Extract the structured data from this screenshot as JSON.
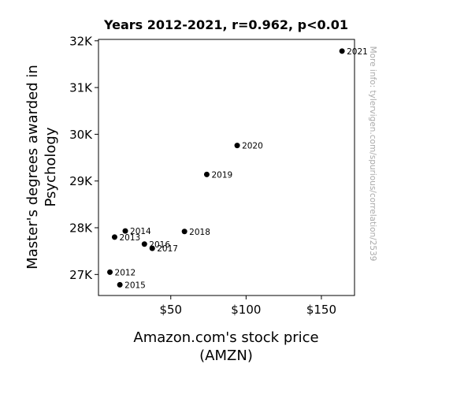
{
  "chart_data": {
    "type": "scatter",
    "title": "Years 2012-2021, r=0.962, p<0.01",
    "xlabel_lines": [
      "Amazon.com's stock price",
      "(AMZN)"
    ],
    "ylabel_lines": [
      "Master's degrees awarded in",
      "Psychology"
    ],
    "watermark": "More info: tylervigen.com/spurious/correlation/2539",
    "xlim": [
      2,
      172
    ],
    "ylim": [
      26550,
      32030
    ],
    "x_ticks": [
      {
        "value": 50,
        "label": "$50"
      },
      {
        "value": 100,
        "label": "$100"
      },
      {
        "value": 150,
        "label": "$150"
      }
    ],
    "y_ticks": [
      {
        "value": 27000,
        "label": "27K"
      },
      {
        "value": 28000,
        "label": "28K"
      },
      {
        "value": 29000,
        "label": "29K"
      },
      {
        "value": 30000,
        "label": "30K"
      },
      {
        "value": 31000,
        "label": "31K"
      },
      {
        "value": 32000,
        "label": "32K"
      }
    ],
    "grid": false,
    "legend": "none",
    "marker_color": "#000000",
    "points": [
      {
        "label": "2012",
        "x": 9.6,
        "y": 27050
      },
      {
        "label": "2013",
        "x": 12.7,
        "y": 27800
      },
      {
        "label": "2014",
        "x": 19.8,
        "y": 27930
      },
      {
        "label": "2015",
        "x": 16.2,
        "y": 26780
      },
      {
        "label": "2016",
        "x": 32.5,
        "y": 27650
      },
      {
        "label": "2017",
        "x": 37.7,
        "y": 27560
      },
      {
        "label": "2018",
        "x": 59.1,
        "y": 27920
      },
      {
        "label": "2019",
        "x": 73.9,
        "y": 29140
      },
      {
        "label": "2020",
        "x": 94.1,
        "y": 29760
      },
      {
        "label": "2021",
        "x": 163.7,
        "y": 31780
      }
    ]
  }
}
